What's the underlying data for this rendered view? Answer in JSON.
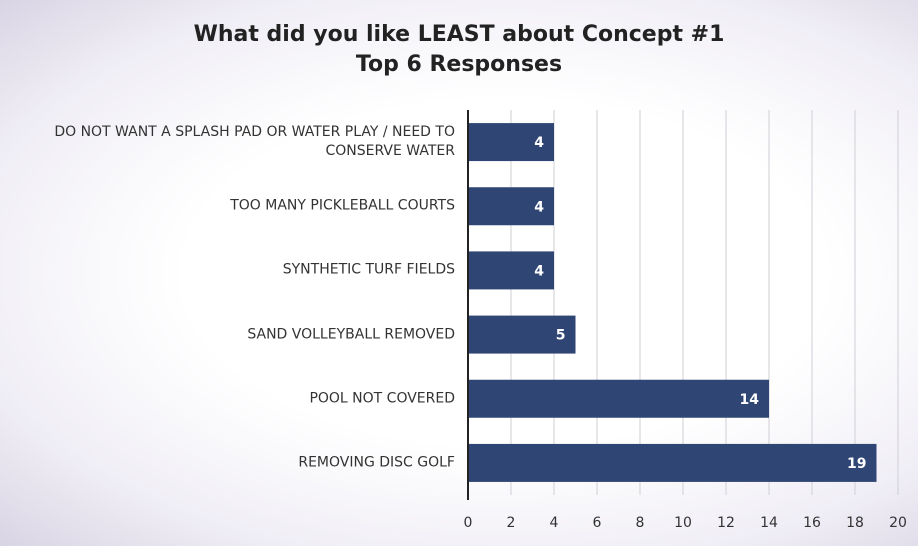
{
  "chart_data": {
    "type": "bar",
    "orientation": "horizontal",
    "title": "What did you like LEAST about Concept #1",
    "subtitle": "Top 6 Responses",
    "categories": [
      "DO NOT WANT A SPLASH PAD OR WATER PLAY / NEED TO CONSERVE WATER",
      "TOO MANY PICKLEBALL COURTS",
      "SYNTHETIC TURF FIELDS",
      "SAND VOLLEYBALL REMOVED",
      "POOL NOT COVERED",
      "REMOVING DISC GOLF"
    ],
    "values": [
      4,
      4,
      4,
      5,
      14,
      19
    ],
    "color": "#2f4674",
    "xlim": [
      0,
      20
    ],
    "xticks": [
      0,
      2,
      4,
      6,
      8,
      10,
      12,
      14,
      16,
      18,
      20
    ],
    "grid": true
  }
}
